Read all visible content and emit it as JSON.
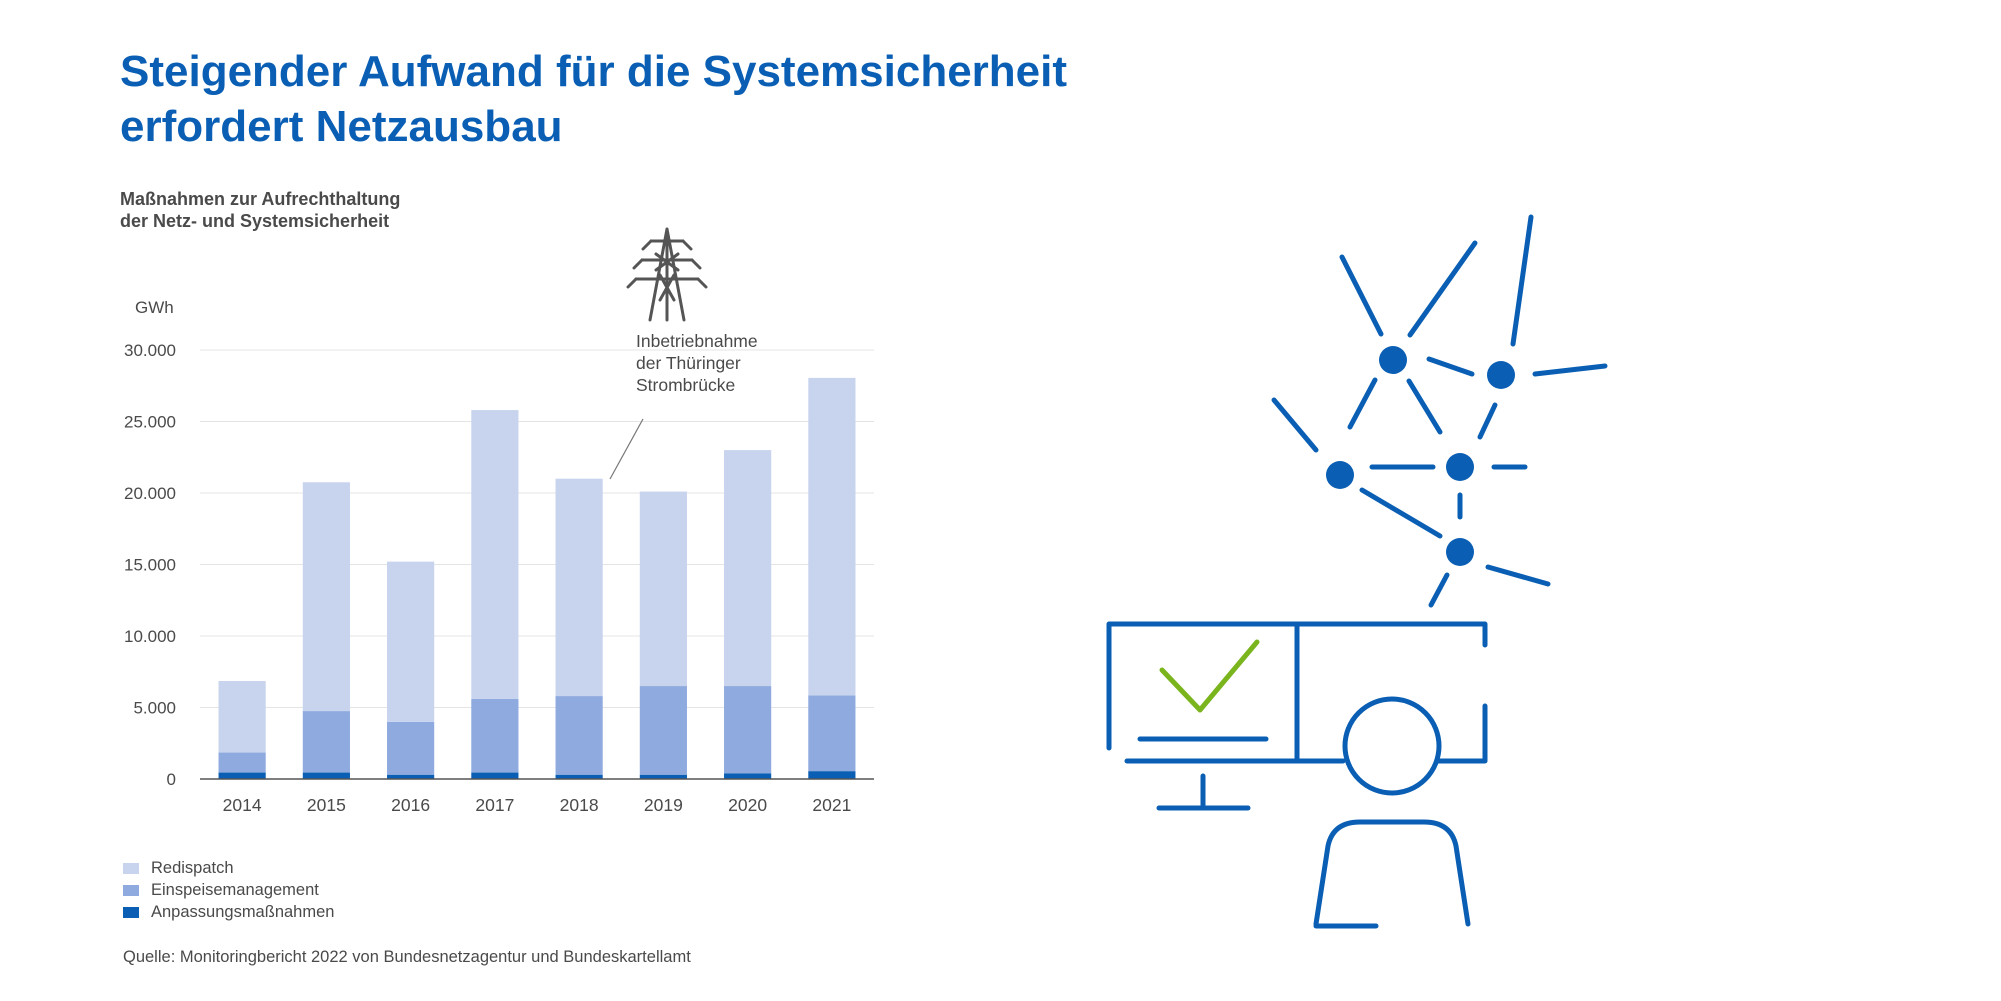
{
  "title_lines": [
    "Steigender Aufwand für die Systemsicherheit",
    "erfordert Netzausbau"
  ],
  "subtitle_lines": [
    "Maßnahmen zur Aufrechthaltung",
    "der Netz- und Systemsicherheit"
  ],
  "annotation": {
    "lines": [
      "Inbetriebnahme",
      "der Thüringer",
      "Strombrücke"
    ],
    "icon": "power-pylon-icon",
    "points_to": "2018"
  },
  "source": "Quelle: Monitoringbericht 2022 von Bundesnetzagentur und Bundeskartellamt",
  "illustration": {
    "icons": [
      "network-nodes-icon",
      "monitor-checkmark-icon",
      "monitor-icon",
      "person-icon"
    ],
    "colors": {
      "blue": "#0a5fb4",
      "green": "#7ab51d"
    }
  },
  "colors": {
    "title": "#0a5fb4",
    "Redispatch": "#c8d3ee",
    "Einspeisemanagement": "#8eaade",
    "Anpassungsmaßnahmen": "#0a5fb4"
  },
  "chart_data": {
    "type": "bar",
    "stacked": true,
    "categories": [
      "2014",
      "2015",
      "2016",
      "2017",
      "2018",
      "2019",
      "2020",
      "2021"
    ],
    "series": [
      {
        "name": "Anpassungsmaßnahmen",
        "values": [
          450,
          450,
          300,
          450,
          300,
          300,
          400,
          550
        ]
      },
      {
        "name": "Einspeisemanagement",
        "values": [
          1400,
          4300,
          3700,
          5150,
          5500,
          6200,
          6100,
          5300
        ]
      },
      {
        "name": "Redispatch",
        "values": [
          5000,
          16000,
          11200,
          20200,
          15200,
          13600,
          16500,
          22200
        ]
      }
    ],
    "ylabel": "GWh",
    "y_ticks": [
      "0",
      "5.000",
      "10.000",
      "15.000",
      "20.000",
      "25.000",
      "30.000"
    ],
    "ylim": [
      0,
      30000
    ],
    "grid": true,
    "legend": [
      "Redispatch",
      "Einspeisemanagement",
      "Anpassungsmaßnahmen"
    ],
    "legend_position": "bottom-left"
  }
}
